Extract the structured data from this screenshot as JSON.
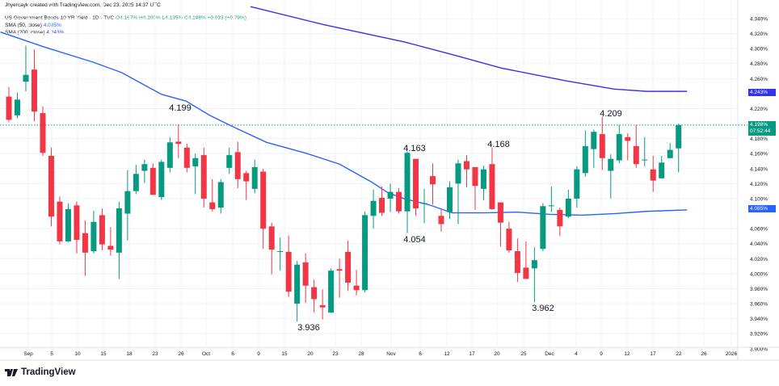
{
  "header": {
    "credit": "Jhyercayk created with TradingView.com, Dec 23, 2025 14:37 UTC",
    "symbol": "US Government Bonds 10 YR Yield · 1D · TVC",
    "ohlc": {
      "open": "O4.167%",
      "high": "H4.200%",
      "low": "L4.135%",
      "close": "C4.198%",
      "change": "+0.033 (+0.79%)"
    },
    "sma50": {
      "label": "SMA (50, close)",
      "value": "4.085%"
    },
    "sma200": {
      "label": "SMA (200, close)",
      "value": "4.243%"
    }
  },
  "price_axis": {
    "ticks": [
      "4.340%",
      "4.320%",
      "4.300%",
      "4.280%",
      "4.260%",
      "4.220%",
      "4.180%",
      "4.160%",
      "4.140%",
      "4.120%",
      "4.100%",
      "4.060%",
      "4.040%",
      "4.020%",
      "4.000%",
      "3.980%",
      "3.960%",
      "3.940%",
      "3.920%",
      "3.900%"
    ],
    "last_price": "4.198%",
    "countdown": "07:52:44",
    "sma200_badge": "4.243%",
    "sma50_badge": "4.085%"
  },
  "time_axis": {
    "labels": [
      "Sep",
      "5",
      "10",
      "15",
      "18",
      "23",
      "26",
      "Oct",
      "6",
      "9",
      "15",
      "20",
      "23",
      "28",
      "Nov",
      "6",
      "12",
      "17",
      "20",
      "25",
      "Dec",
      "4",
      "9",
      "12",
      "17",
      "22",
      "26",
      "2026"
    ]
  },
  "annotations": [
    "4.199",
    "3.936",
    "4.163",
    "4.054",
    "4.168",
    "3.962",
    "4.209"
  ],
  "brand": "TradingView",
  "colors": {
    "up": "#089981",
    "down": "#f23645",
    "sma50": "#2962ff",
    "sma200": "#3333ee"
  },
  "chart_data": {
    "type": "candlestick",
    "yunit": "%",
    "ylim": [
      3.9,
      4.35
    ],
    "grid": true,
    "candles": [
      [
        4.236,
        4.249,
        4.202,
        4.205
      ],
      [
        4.211,
        4.241,
        4.207,
        4.232
      ],
      [
        4.256,
        4.304,
        4.243,
        4.265
      ],
      [
        4.272,
        4.299,
        4.203,
        4.216
      ],
      [
        4.214,
        4.223,
        4.157,
        4.161
      ],
      [
        4.157,
        4.168,
        4.063,
        4.076
      ],
      [
        4.096,
        4.103,
        4.039,
        4.043
      ],
      [
        4.043,
        4.094,
        4.042,
        4.086
      ],
      [
        4.091,
        4.096,
        4.027,
        4.045
      ],
      [
        4.054,
        4.071,
        3.997,
        4.028
      ],
      [
        4.03,
        4.084,
        4.027,
        4.069
      ],
      [
        4.078,
        4.087,
        4.031,
        4.039
      ],
      [
        4.037,
        4.062,
        4.024,
        4.032
      ],
      [
        4.028,
        4.096,
        3.993,
        4.087
      ],
      [
        4.08,
        4.138,
        4.044,
        4.11
      ],
      [
        4.11,
        4.145,
        4.106,
        4.133
      ],
      [
        4.137,
        4.152,
        4.121,
        4.146
      ],
      [
        4.141,
        4.147,
        4.105,
        4.105
      ],
      [
        4.102,
        4.152,
        4.098,
        4.149
      ],
      [
        4.141,
        4.182,
        4.135,
        4.175
      ],
      [
        4.176,
        4.199,
        4.154,
        4.173
      ],
      [
        4.168,
        4.173,
        4.135,
        4.141
      ],
      [
        4.143,
        4.16,
        4.106,
        4.154
      ],
      [
        4.158,
        4.168,
        4.088,
        4.1
      ],
      [
        4.095,
        4.126,
        4.083,
        4.086
      ],
      [
        4.088,
        4.126,
        4.08,
        4.122
      ],
      [
        4.141,
        4.168,
        4.133,
        4.158
      ],
      [
        4.162,
        4.176,
        4.114,
        4.126
      ],
      [
        4.134,
        4.137,
        4.098,
        4.123
      ],
      [
        4.113,
        4.152,
        4.107,
        4.142
      ],
      [
        4.136,
        4.14,
        4.033,
        4.06
      ],
      [
        4.063,
        4.068,
        3.999,
        4.032
      ],
      [
        4.029,
        4.048,
        4.004,
        4.03
      ],
      [
        4.029,
        4.051,
        3.969,
        3.976
      ],
      [
        3.96,
        4.017,
        3.936,
        4.012
      ],
      [
        4.015,
        4.027,
        3.961,
        3.984
      ],
      [
        3.982,
        3.992,
        3.948,
        3.966
      ],
      [
        3.958,
        3.979,
        3.939,
        3.955
      ],
      [
        3.948,
        4.007,
        3.948,
        4.004
      ],
      [
        4.006,
        4.02,
        3.968,
        4.004
      ],
      [
        4.029,
        4.044,
        3.977,
        3.988
      ],
      [
        3.984,
        4.005,
        3.971,
        3.978
      ],
      [
        3.978,
        4.083,
        3.975,
        4.078
      ],
      [
        4.077,
        4.112,
        4.06,
        4.097
      ],
      [
        4.101,
        4.116,
        4.077,
        4.081
      ],
      [
        4.1,
        4.12,
        4.082,
        4.109
      ],
      [
        4.109,
        4.114,
        4.08,
        4.083
      ],
      [
        4.083,
        4.163,
        4.054,
        4.161
      ],
      [
        4.153,
        4.153,
        4.077,
        4.087
      ],
      [
        4.093,
        4.113,
        4.067,
        4.094
      ],
      [
        4.13,
        4.147,
        4.092,
        4.119
      ],
      [
        4.077,
        4.085,
        4.056,
        4.066
      ],
      [
        4.082,
        4.123,
        4.073,
        4.115
      ],
      [
        4.12,
        4.152,
        4.066,
        4.147
      ],
      [
        4.15,
        4.158,
        4.115,
        4.139
      ],
      [
        4.142,
        4.142,
        4.085,
        4.117
      ],
      [
        4.113,
        4.144,
        4.098,
        4.139
      ],
      [
        4.146,
        4.168,
        4.085,
        4.086
      ],
      [
        4.095,
        4.095,
        4.036,
        4.068
      ],
      [
        4.06,
        4.069,
        4.028,
        4.031
      ],
      [
        4.03,
        4.047,
        3.989,
        4.001
      ],
      [
        4.008,
        4.043,
        3.993,
        3.993
      ],
      [
        4.007,
        4.035,
        3.962,
        4.018
      ],
      [
        4.033,
        4.094,
        4.03,
        4.09
      ],
      [
        4.09,
        4.116,
        4.082,
        4.091
      ],
      [
        4.085,
        4.088,
        4.05,
        4.063
      ],
      [
        4.076,
        4.112,
        4.074,
        4.1
      ],
      [
        4.1,
        4.143,
        4.088,
        4.139
      ],
      [
        4.134,
        4.191,
        4.129,
        4.17
      ],
      [
        4.166,
        4.192,
        4.141,
        4.189
      ],
      [
        4.186,
        4.209,
        4.138,
        4.154
      ],
      [
        4.137,
        4.159,
        4.1,
        4.153
      ],
      [
        4.151,
        4.198,
        4.147,
        4.186
      ],
      [
        4.182,
        4.187,
        4.151,
        4.177
      ],
      [
        4.17,
        4.198,
        4.141,
        4.146
      ],
      [
        4.151,
        4.182,
        4.143,
        4.152
      ],
      [
        4.139,
        4.157,
        4.109,
        4.124
      ],
      [
        4.127,
        4.157,
        4.128,
        4.148
      ],
      [
        4.154,
        4.174,
        4.154,
        4.165
      ],
      [
        4.167,
        4.2,
        4.135,
        4.198
      ]
    ],
    "sma50": [
      [
        -1,
        4.322
      ],
      [
        4.2,
        4.302
      ],
      [
        9.9,
        4.282
      ],
      [
        13.3,
        4.268
      ],
      [
        18,
        4.239
      ],
      [
        20.9,
        4.23
      ],
      [
        23.7,
        4.211
      ],
      [
        26.6,
        4.195
      ],
      [
        30.4,
        4.175
      ],
      [
        35.2,
        4.16
      ],
      [
        39,
        4.146
      ],
      [
        42.8,
        4.122
      ],
      [
        44.7,
        4.108
      ],
      [
        46.6,
        4.1
      ],
      [
        49.5,
        4.092
      ],
      [
        52.3,
        4.081
      ],
      [
        56.1,
        4.081
      ],
      [
        60,
        4.082
      ],
      [
        63.8,
        4.079
      ],
      [
        67.6,
        4.078
      ],
      [
        71.4,
        4.08
      ],
      [
        75.2,
        4.083
      ],
      [
        80,
        4.085
      ]
    ],
    "sma200": [
      [
        28.5,
        4.356
      ],
      [
        37.1,
        4.332
      ],
      [
        46.6,
        4.309
      ],
      [
        52.3,
        4.292
      ],
      [
        58.1,
        4.274
      ],
      [
        65.7,
        4.257
      ],
      [
        71.4,
        4.246
      ],
      [
        75.2,
        4.243
      ],
      [
        80,
        4.243
      ]
    ]
  }
}
